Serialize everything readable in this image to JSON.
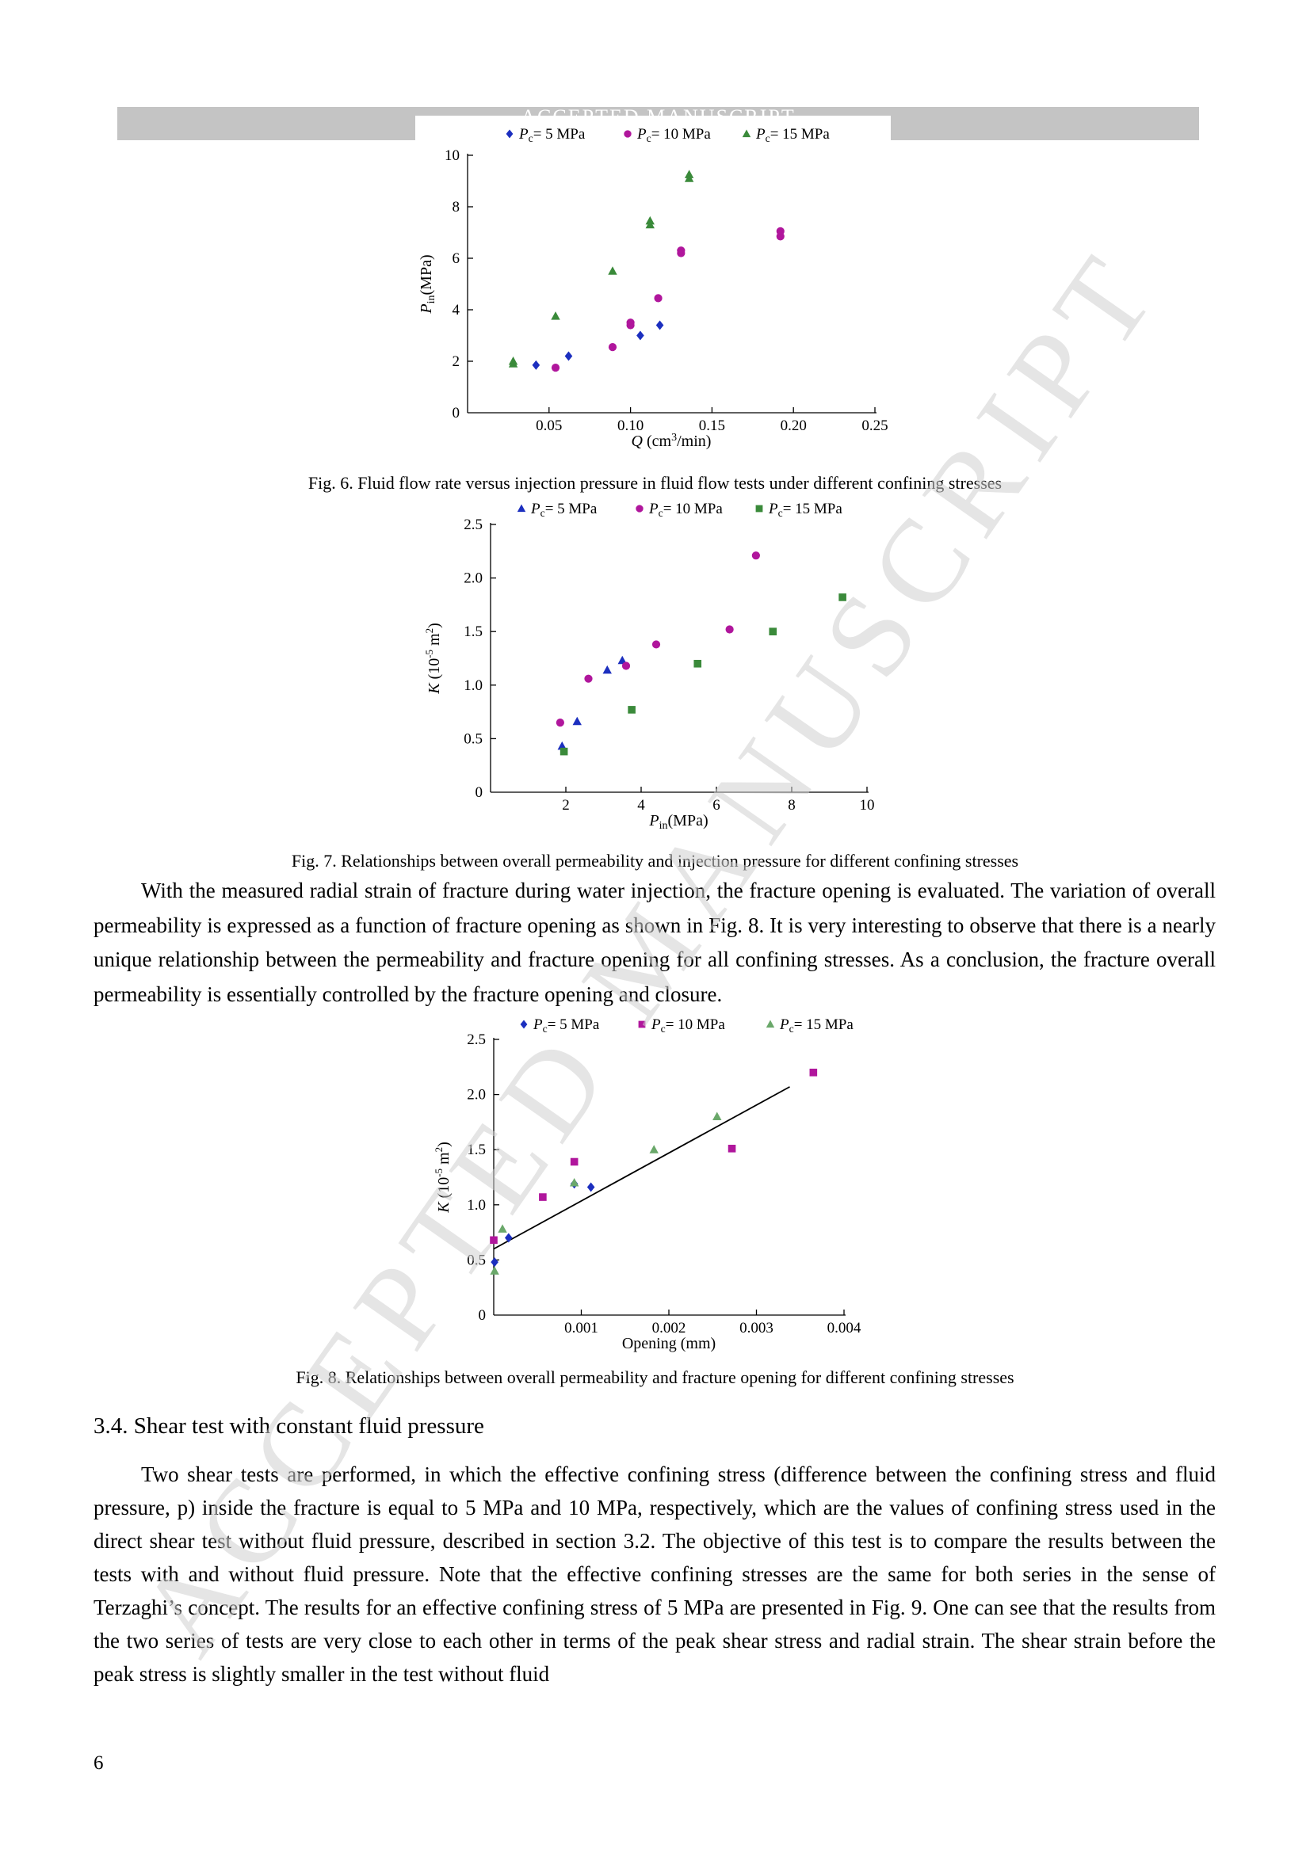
{
  "banner": "ACCEPTED MANUSCRIPT",
  "watermark": "ACCEPTED MANUSCRIPT",
  "figure6": {
    "caption": "Fig. 6. Fluid flow rate versus injection pressure in fluid flow tests under different confining stresses",
    "legend": [
      "Pc= 5 MPa",
      "Pc= 10 MPa",
      "Pc= 15 MPa"
    ],
    "xlabel": "Q (cm3/min)",
    "ylabel": "Pin(MPa)"
  },
  "figure7": {
    "caption": "Fig. 7. Relationships between overall permeability and injection pressure for different confining stresses",
    "legend": [
      "Pc= 5 MPa",
      "Pc= 10 MPa",
      "Pc= 15 MPa"
    ],
    "xlabel": "Pin(MPa)",
    "ylabel": "K (10-5 m2)"
  },
  "figure8": {
    "caption": "Fig. 8. Relationships between overall permeability and fracture opening for different confining stresses",
    "legend": [
      "Pc= 5 MPa",
      "Pc= 10 MPa",
      "Pc= 15 MPa"
    ],
    "xlabel": "Opening (mm)",
    "ylabel": "K (10-5 m2)"
  },
  "paragraph1": "With the measured radial strain of fracture during water injection, the fracture opening is evaluated. The variation of overall permeability is expressed as a function of fracture opening as shown in Fig. 8. It is very interesting to observe that there is a nearly unique relationship between the permeability and fracture opening for all confining stresses. As a conclusion, the fracture overall permeability is essentially controlled by the fracture opening and closure.",
  "section_heading": "3.4. Shear test with constant fluid pressure",
  "paragraph2": "Two shear tests are performed, in which the effective confining stress (difference between the confining stress and fluid pressure, p) inside the fracture is equal to 5 MPa and 10 MPa, respectively, which are the values of confining stress used in the direct shear test without fluid pressure, described in section 3.2. The objective of this test is to compare the results between the tests with and without fluid pressure. Note that the effective confining stresses are the same for both series in the sense of Terzaghi’s concept. The results for an effective confining stress of 5 MPa are presented in Fig. 9. One can see that the results from the two series of tests are very close to each other in terms of the peak shear stress and radial strain. The shear strain before the peak stress is slightly smaller in the test without fluid",
  "page_number": "6",
  "chart_data": [
    {
      "type": "scatter",
      "title": "",
      "xlabel": "Q (cm3/min)",
      "ylabel": "Pin(MPa)",
      "xlim": [
        0,
        0.25
      ],
      "ylim": [
        0,
        10
      ],
      "xticks": [
        "0.05",
        "0.10",
        "0.15",
        "0.20",
        "0.25"
      ],
      "yticks": [
        "0",
        "2",
        "4",
        "6",
        "8",
        "10"
      ],
      "legend_position": "top",
      "series": [
        {
          "name": "Pc= 5 MPa",
          "marker": "diamond",
          "color": "#1c2fbf",
          "x": [
            0.042,
            0.062,
            0.106,
            0.118
          ],
          "y": [
            1.85,
            2.2,
            3.0,
            3.4
          ]
        },
        {
          "name": "Pc= 10 MPa",
          "marker": "circle",
          "color": "#b0169c",
          "x": [
            0.054,
            0.089,
            0.1,
            0.1,
            0.117,
            0.131,
            0.131,
            0.192,
            0.192
          ],
          "y": [
            1.75,
            2.55,
            3.4,
            3.5,
            4.45,
            6.2,
            6.3,
            6.85,
            7.05
          ]
        },
        {
          "name": "Pc= 15 MPa",
          "marker": "triangle",
          "color": "#3a8a3a",
          "x": [
            0.028,
            0.028,
            0.054,
            0.089,
            0.112,
            0.112,
            0.136,
            0.136
          ],
          "y": [
            1.9,
            2.0,
            3.75,
            5.5,
            7.3,
            7.45,
            9.1,
            9.25
          ]
        }
      ]
    },
    {
      "type": "scatter",
      "title": "",
      "xlabel": "Pin(MPa)",
      "ylabel": "K (10-5 m2)",
      "xlim": [
        0,
        10
      ],
      "ylim": [
        0,
        2.5
      ],
      "xticks": [
        "2",
        "4",
        "6",
        "8",
        "10"
      ],
      "yticks": [
        "0",
        "0.5",
        "1.0",
        "1.5",
        "2.0",
        "2.5"
      ],
      "legend_position": "top",
      "series": [
        {
          "name": "Pc= 5 MPa",
          "marker": "triangle",
          "color": "#1c2fbf",
          "x": [
            1.9,
            2.3,
            3.1,
            3.5
          ],
          "y": [
            0.43,
            0.66,
            1.14,
            1.23
          ]
        },
        {
          "name": "Pc= 10 MPa",
          "marker": "circle",
          "color": "#b0169c",
          "x": [
            1.85,
            2.6,
            3.6,
            4.4,
            6.35,
            7.05
          ],
          "y": [
            0.65,
            1.06,
            1.18,
            1.38,
            1.52,
            2.21
          ]
        },
        {
          "name": "Pc= 15 MPa",
          "marker": "square",
          "color": "#3a8a3a",
          "x": [
            1.95,
            3.75,
            5.5,
            7.5,
            9.35
          ],
          "y": [
            0.38,
            0.77,
            1.2,
            1.5,
            1.82
          ]
        }
      ]
    },
    {
      "type": "scatter",
      "title": "",
      "xlabel": "Opening (mm)",
      "ylabel": "K (10-5 m2)",
      "xlim": [
        0,
        0.004
      ],
      "ylim": [
        0,
        2.5
      ],
      "xticks": [
        "0.001",
        "0.002",
        "0.003",
        "0.004"
      ],
      "yticks": [
        "0",
        "0.5",
        "1.0",
        "1.5",
        "2.0",
        "2.5"
      ],
      "legend_position": "top",
      "trendline": {
        "x": [
          0,
          0.00338
        ],
        "y": [
          0.6,
          2.07
        ],
        "color": "#000000"
      },
      "series": [
        {
          "name": "Pc= 5 MPa",
          "marker": "diamond",
          "color": "#1c2fbf",
          "x": [
            1e-05,
            0.00017,
            0.00092,
            0.00111
          ],
          "y": [
            0.48,
            0.7,
            1.19,
            1.16
          ]
        },
        {
          "name": "Pc= 10 MPa",
          "marker": "square",
          "color": "#b0169c",
          "x": [
            0.0,
            0.00056,
            0.00092,
            0.00272,
            0.00365
          ],
          "y": [
            0.68,
            1.07,
            1.39,
            1.51,
            2.2
          ]
        },
        {
          "name": "Pc= 15 MPa",
          "marker": "triangle",
          "color": "#6aa86a",
          "x": [
            1e-05,
            0.0001,
            0.00092,
            0.00183,
            0.00255
          ],
          "y": [
            0.4,
            0.78,
            1.2,
            1.5,
            1.8
          ]
        }
      ]
    }
  ]
}
